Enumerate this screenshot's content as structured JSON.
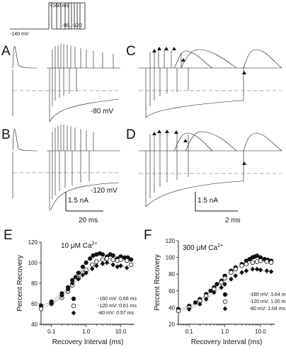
{
  "figure": {
    "protocol": {
      "v_hold": "-140 mV",
      "v_step": "+160 mV",
      "v_recovery": "-80, -120"
    },
    "panels": {
      "A": {
        "label": "A",
        "recovery_voltage": "-80 mV"
      },
      "B": {
        "label": "B",
        "recovery_voltage": "-120 mV",
        "scalebar_current": "1.5 nA",
        "scalebar_time": "20 ms"
      },
      "C": {
        "label": "C"
      },
      "D": {
        "label": "D",
        "scalebar_current": "1.5 nA",
        "scalebar_time": "2 ms"
      }
    }
  },
  "chart_data": [
    {
      "panel": "E",
      "type": "scatter",
      "title": "10 μM Ca",
      "title_sup": "2+",
      "xlabel": "Recovery Interval (ms)",
      "ylabel": "Percent Recovery",
      "xscale": "log",
      "xlim": [
        0.05,
        25
      ],
      "ylim": [
        40,
        120
      ],
      "xticks": [
        "0.1",
        "1.0",
        "10.0"
      ],
      "yticks": [
        "40",
        "60",
        "80",
        "100",
        "120"
      ],
      "legend": [
        {
          "marker": "filled-circle",
          "label": "-160 mV: 0.66 ms"
        },
        {
          "marker": "open-circle",
          "label": "-120 mV: 0.61 ms"
        },
        {
          "marker": "filled-diamond",
          "label": "-80 mV: 0.57 ms"
        }
      ],
      "series": [
        {
          "label": "-160 mV: 0.66 ms",
          "marker": "filled-circle",
          "x": [
            0.05,
            0.1,
            0.2,
            0.3,
            0.4,
            0.5,
            0.6,
            0.8,
            1.0,
            1.3,
            1.6,
            2.0,
            2.5,
            3.0,
            4.0,
            5.0,
            6.0,
            8.0,
            10.0,
            13.0,
            16.0,
            20.0
          ],
          "y": [
            58,
            62,
            70,
            76,
            83,
            86,
            90,
            96,
            100,
            104,
            107,
            108,
            109,
            108,
            106,
            108,
            107,
            104,
            106,
            105,
            105,
            103
          ]
        },
        {
          "label": "-120 mV: 0.61 ms",
          "marker": "open-circle",
          "x": [
            0.05,
            0.1,
            0.2,
            0.3,
            0.4,
            0.6,
            0.8,
            1.0,
            1.5,
            2.0,
            3.0,
            4.0,
            6.0,
            8.0,
            10.0,
            15.0,
            20.0
          ],
          "y": [
            55,
            60,
            66,
            72,
            78,
            85,
            90,
            93,
            98,
            101,
            103,
            104,
            103,
            102,
            103,
            102,
            98
          ]
        },
        {
          "label": "-80 mV: 0.57 ms",
          "marker": "filled-diamond",
          "x": [
            0.1,
            0.2,
            0.3,
            0.4,
            0.6,
            0.8,
            1.0,
            1.5,
            2.0,
            3.0,
            4.0,
            6.0,
            8.0,
            10.0,
            15.0
          ],
          "y": [
            60,
            68,
            74,
            80,
            84,
            88,
            90,
            94,
            97,
            99,
            100,
            98,
            96,
            97,
            95
          ]
        }
      ]
    },
    {
      "panel": "F",
      "type": "scatter",
      "title": "300 μM Ca",
      "title_sup": "2+",
      "xlabel": "Recovery Interval (ms)",
      "ylabel": "Percent Recovery",
      "xscale": "log",
      "xlim": [
        0.05,
        25
      ],
      "ylim": [
        20,
        120
      ],
      "xticks": [
        "0.1",
        "1.0",
        "10.0"
      ],
      "yticks": [
        "20",
        "40",
        "60",
        "80",
        "100",
        "120"
      ],
      "legend": [
        {
          "marker": "filled-circle",
          "label": "-160 mV: 3.64 ms"
        },
        {
          "marker": "open-circle",
          "label": "-120 mV: 1.00 ms"
        },
        {
          "marker": "filled-diamond",
          "label": "-80 mV: 1.04 ms"
        }
      ],
      "series": [
        {
          "label": "-160 mV: 3.64 ms",
          "marker": "filled-circle",
          "x": [
            0.05,
            0.1,
            0.15,
            0.2,
            0.3,
            0.4,
            0.5,
            0.6,
            0.8,
            1.0,
            1.5,
            2.0,
            3.0,
            4.0,
            5.0,
            6.0,
            7.0,
            8.0,
            10.0,
            13.0,
            16.0,
            20.0
          ],
          "y": [
            38,
            42,
            46,
            50,
            56,
            60,
            64,
            68,
            72,
            78,
            84,
            88,
            92,
            96,
            98,
            100,
            101,
            102,
            100,
            98,
            97,
            96
          ]
        },
        {
          "label": "-120 mV: 1.00 ms",
          "marker": "open-circle",
          "x": [
            0.05,
            0.1,
            0.2,
            0.3,
            0.5,
            0.8,
            1.0,
            1.5,
            2.0,
            3.0,
            4.0,
            6.0,
            8.0,
            10.0,
            15.0,
            20.0
          ],
          "y": [
            36,
            40,
            48,
            54,
            62,
            70,
            75,
            82,
            86,
            90,
            92,
            94,
            95,
            96,
            95,
            94
          ]
        },
        {
          "label": "-80 mV: 1.04 ms",
          "marker": "filled-diamond",
          "x": [
            0.1,
            0.2,
            0.3,
            0.5,
            0.8,
            1.0,
            1.5,
            2.0,
            3.0,
            4.0,
            6.0,
            8.0,
            10.0,
            15.0,
            20.0
          ],
          "y": [
            38,
            44,
            50,
            58,
            64,
            68,
            74,
            78,
            82,
            84,
            86,
            86,
            85,
            84,
            83
          ]
        }
      ]
    }
  ]
}
